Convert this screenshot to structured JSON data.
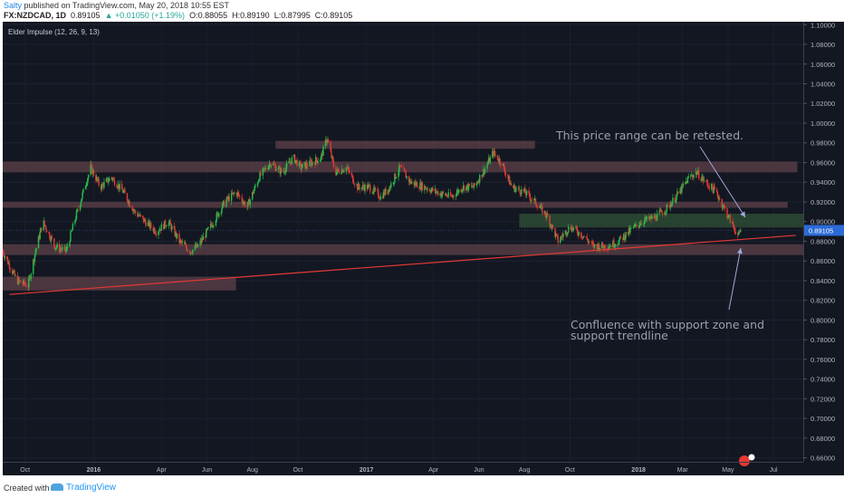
{
  "header": {
    "author": "Salty",
    "published": "published on TradingView.com, May 20, 2018 10:55 EST",
    "symbol": "FX:NZDCAD, 1D",
    "last": "0.89105",
    "change": "▲ +0.01050 (+1.19%)",
    "ohlc_o": "O:0.88055",
    "ohlc_h": "H:0.89190",
    "ohlc_l": "L:0.87995",
    "ohlc_c": "C:0.89105"
  },
  "indicator_label": "Elder Impulse (12, 26, 9, 13)",
  "footer": {
    "created": "Created with",
    "brand": "TradingView"
  },
  "colors": {
    "background": "#131722",
    "up_candle": "#26c04a",
    "down_candle": "#e53935",
    "zone": "#5a3f47",
    "green_zone": "#2d4a34",
    "trendline": "#e53935",
    "arrow": "#9fa8da"
  },
  "chart_data": {
    "type": "candlestick",
    "symbol": "FX:NZDCAD",
    "interval": "1D",
    "y_axis": {
      "ticks": [
        "1.10000",
        "1.08000",
        "1.06000",
        "1.04000",
        "1.02000",
        "1.00000",
        "0.98000",
        "0.96000",
        "0.94000",
        "0.92000",
        "0.90000",
        "0.88000",
        "0.86000",
        "0.84000",
        "0.82000",
        "0.80000",
        "0.78000",
        "0.76000",
        "0.74000",
        "0.72000",
        "0.70000",
        "0.68000",
        "0.66000"
      ],
      "range": [
        0.656,
        1.103
      ],
      "last_price_label": "0.89105"
    },
    "x_axis": {
      "ticks": [
        "Oct",
        "2016",
        "Apr",
        "Jun",
        "Aug",
        "Oct",
        "2017",
        "Apr",
        "Jun",
        "Aug",
        "Oct",
        "2018",
        "Mar",
        "May",
        "Jul"
      ],
      "range": [
        "2015-09-01",
        "2018-08-10"
      ]
    },
    "price_path": [
      [
        "2015-09-01",
        0.87
      ],
      [
        "2015-09-20",
        0.84
      ],
      [
        "2015-10-05",
        0.835
      ],
      [
        "2015-10-15",
        0.87
      ],
      [
        "2015-10-25",
        0.9
      ],
      [
        "2015-11-10",
        0.875
      ],
      [
        "2015-11-25",
        0.87
      ],
      [
        "2015-12-10",
        0.91
      ],
      [
        "2015-12-28",
        0.955
      ],
      [
        "2016-01-10",
        0.935
      ],
      [
        "2016-01-25",
        0.945
      ],
      [
        "2016-02-10",
        0.93
      ],
      [
        "2016-02-25",
        0.91
      ],
      [
        "2016-03-10",
        0.9
      ],
      [
        "2016-03-25",
        0.89
      ],
      [
        "2016-04-10",
        0.9
      ],
      [
        "2016-04-25",
        0.88
      ],
      [
        "2016-05-10",
        0.87
      ],
      [
        "2016-05-20",
        0.875
      ],
      [
        "2016-06-10",
        0.9
      ],
      [
        "2016-06-25",
        0.92
      ],
      [
        "2016-07-10",
        0.93
      ],
      [
        "2016-07-25",
        0.915
      ],
      [
        "2016-08-10",
        0.945
      ],
      [
        "2016-08-25",
        0.96
      ],
      [
        "2016-09-10",
        0.95
      ],
      [
        "2016-09-25",
        0.965
      ],
      [
        "2016-10-05",
        0.955
      ],
      [
        "2016-10-20",
        0.96
      ],
      [
        "2016-11-01",
        0.965
      ],
      [
        "2016-11-09",
        0.985
      ],
      [
        "2016-11-20",
        0.95
      ],
      [
        "2016-12-05",
        0.955
      ],
      [
        "2016-12-20",
        0.935
      ],
      [
        "2017-01-05",
        0.935
      ],
      [
        "2017-01-20",
        0.925
      ],
      [
        "2017-02-01",
        0.935
      ],
      [
        "2017-02-15",
        0.955
      ],
      [
        "2017-03-01",
        0.94
      ],
      [
        "2017-03-20",
        0.935
      ],
      [
        "2017-04-05",
        0.93
      ],
      [
        "2017-04-25",
        0.925
      ],
      [
        "2017-05-10",
        0.935
      ],
      [
        "2017-05-25",
        0.935
      ],
      [
        "2017-06-10",
        0.955
      ],
      [
        "2017-06-20",
        0.97
      ],
      [
        "2017-07-01",
        0.96
      ],
      [
        "2017-07-15",
        0.935
      ],
      [
        "2017-08-01",
        0.93
      ],
      [
        "2017-08-15",
        0.92
      ],
      [
        "2017-09-01",
        0.905
      ],
      [
        "2017-09-15",
        0.88
      ],
      [
        "2017-10-01",
        0.895
      ],
      [
        "2017-10-20",
        0.885
      ],
      [
        "2017-11-01",
        0.875
      ],
      [
        "2017-11-20",
        0.875
      ],
      [
        "2017-12-05",
        0.88
      ],
      [
        "2017-12-20",
        0.89
      ],
      [
        "2018-01-05",
        0.9
      ],
      [
        "2018-01-25",
        0.905
      ],
      [
        "2018-02-10",
        0.915
      ],
      [
        "2018-02-25",
        0.93
      ],
      [
        "2018-03-10",
        0.945
      ],
      [
        "2018-03-20",
        0.95
      ],
      [
        "2018-04-01",
        0.94
      ],
      [
        "2018-04-15",
        0.93
      ],
      [
        "2018-04-25",
        0.915
      ],
      [
        "2018-05-05",
        0.9
      ],
      [
        "2018-05-15",
        0.885
      ],
      [
        "2018-05-18",
        0.89105
      ]
    ],
    "zones": [
      {
        "from": "2016-09-01",
        "to": "2017-08-15",
        "top": 0.982,
        "bottom": 0.974
      },
      {
        "from": "2015-09-01",
        "to": "2018-08-02",
        "top": 0.961,
        "bottom": 0.95
      },
      {
        "from": "2015-09-01",
        "to": "2018-07-20",
        "top": 0.92,
        "bottom": 0.914
      },
      {
        "from": "2015-09-01",
        "to": "2018-08-10",
        "top": 0.877,
        "bottom": 0.866
      },
      {
        "from": "2015-09-01",
        "to": "2016-07-10",
        "top": 0.844,
        "bottom": 0.83
      }
    ],
    "green_zone": {
      "from": "2017-07-25",
      "to": "2018-08-10",
      "top": 0.908,
      "bottom": 0.894
    },
    "trendline": {
      "x1": "2015-09-10",
      "y1": 0.826,
      "x2": "2018-07-31",
      "y2": 0.886
    },
    "annotations": [
      {
        "text": "This price range can be retested."
      },
      {
        "text": "Confluence with support zone and"
      },
      {
        "text": "support trendline"
      }
    ]
  }
}
